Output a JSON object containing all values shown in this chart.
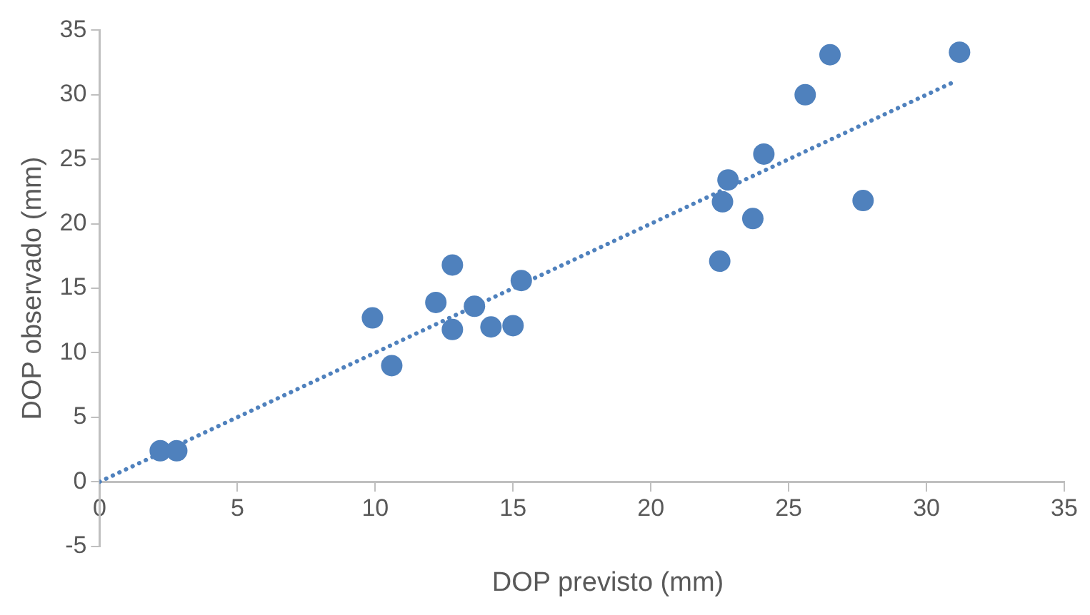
{
  "chart_data": {
    "type": "scatter",
    "xlabel": "DOP previsto (mm)",
    "ylabel": "DOP observado (mm)",
    "x": [
      2.2,
      2.8,
      9.9,
      10.6,
      12.2,
      12.8,
      12.8,
      13.6,
      14.2,
      15.0,
      15.3,
      22.5,
      22.6,
      22.8,
      23.7,
      24.1,
      25.6,
      26.5,
      27.7,
      31.2
    ],
    "series": [
      {
        "type": "scatter",
        "color": "#4f81bd",
        "marker": "circle",
        "values": [
          2.4,
          2.4,
          12.7,
          9.0,
          13.9,
          16.8,
          11.8,
          13.6,
          12.0,
          12.1,
          15.6,
          17.1,
          21.7,
          23.4,
          20.4,
          25.4,
          30.0,
          33.1,
          21.8,
          33.3
        ]
      },
      {
        "type": "line",
        "color": "#4f81bd",
        "line_style": "dotted",
        "marker": "none",
        "x": [
          0,
          31.1
        ],
        "values": [
          0,
          31.1
        ]
      }
    ],
    "xlim": [
      0,
      35
    ],
    "xticks": [
      0,
      5,
      10,
      15,
      20,
      25,
      30,
      35
    ],
    "ylim": [
      -5,
      35
    ],
    "yticks": [
      -5,
      0,
      5,
      10,
      15,
      20,
      25,
      30,
      35
    ],
    "grid": false,
    "legend": false
  }
}
